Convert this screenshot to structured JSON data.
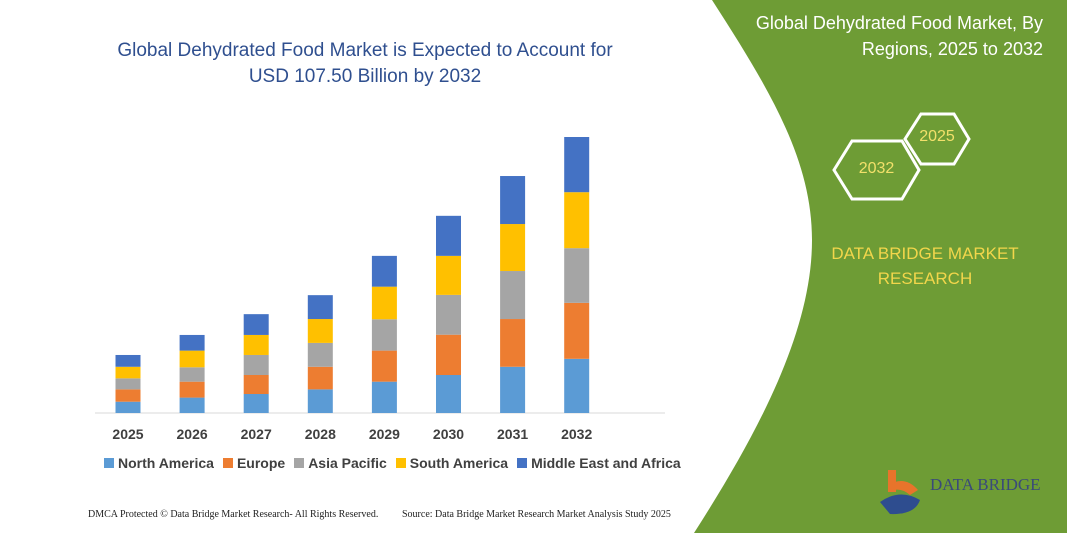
{
  "title": "Global Dehydrated Food Market is Expected to Account for USD 107.50 Billion by 2032",
  "side_panel": {
    "title": "Global Dehydrated Food Market, By Regions, 2025 to 2032",
    "hex_start": "2025",
    "hex_end": "2032",
    "brand": "DATA BRIDGE MARKET RESEARCH",
    "logo": "DATA BRIDGE",
    "color": "#6e9c35"
  },
  "footer": {
    "left": "DMCA Protected © Data Bridge Market Research- All Rights Reserved.",
    "right": "Source: Data Bridge Market Research Market Analysis Study 2025"
  },
  "chart_data": {
    "type": "bar",
    "stacked": true,
    "title": "Global Dehydrated Food Market is Expected to Account for USD 107.50 Billion by 2032",
    "categories": [
      "2025",
      "2026",
      "2027",
      "2028",
      "2029",
      "2030",
      "2031",
      "2032"
    ],
    "series": [
      {
        "name": "North America",
        "color": "#5b9bd5",
        "values": [
          4.4,
          6.0,
          7.4,
          9.2,
          12.2,
          14.8,
          18.0,
          21.1
        ]
      },
      {
        "name": "Europe",
        "color": "#ed7d31",
        "values": [
          4.8,
          6.2,
          7.4,
          8.8,
          12.1,
          15.7,
          18.6,
          21.8
        ]
      },
      {
        "name": "Asia Pacific",
        "color": "#a5a5a5",
        "values": [
          4.3,
          5.6,
          7.8,
          9.3,
          12.2,
          15.5,
          18.7,
          21.3
        ]
      },
      {
        "name": "South America",
        "color": "#ffc000",
        "values": [
          4.5,
          6.5,
          7.8,
          9.3,
          12.7,
          15.2,
          18.3,
          21.8
        ]
      },
      {
        "name": "Middle East and Africa",
        "color": "#4472c4",
        "values": [
          4.6,
          6.1,
          8.1,
          9.3,
          12.0,
          15.6,
          18.7,
          21.5
        ]
      }
    ],
    "ylim": [
      0,
      107.5
    ],
    "yaxis_visible": false,
    "grid": false,
    "legend": "bottom"
  }
}
